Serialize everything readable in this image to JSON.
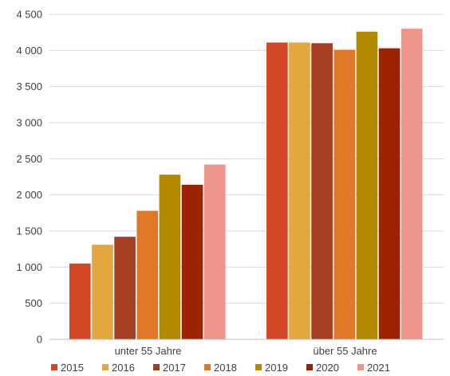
{
  "chart_data": {
    "type": "bar",
    "categories": [
      "unter 55 Jahre",
      "über 55 Jahre"
    ],
    "series": [
      {
        "name": "2015",
        "color": "#d24726",
        "values": [
          1050,
          4110
        ]
      },
      {
        "name": "2016",
        "color": "#e2a73f",
        "values": [
          1310,
          4110
        ]
      },
      {
        "name": "2017",
        "color": "#a33e22",
        "values": [
          1420,
          4100
        ]
      },
      {
        "name": "2018",
        "color": "#e07828",
        "values": [
          1780,
          4010
        ]
      },
      {
        "name": "2019",
        "color": "#b38b00",
        "values": [
          2280,
          4260
        ]
      },
      {
        "name": "2020",
        "color": "#9c2200",
        "values": [
          2140,
          4030
        ]
      },
      {
        "name": "2021",
        "color": "#ee958a",
        "values": [
          2420,
          4300
        ]
      }
    ],
    "ylim": [
      0,
      4500
    ],
    "yticks": [
      0,
      500,
      1000,
      1500,
      2000,
      2500,
      3000,
      3500,
      4000,
      4500
    ],
    "ytick_labels": [
      "0",
      "500",
      "1 000",
      "1 500",
      "2 000",
      "2 500",
      "3 000",
      "3 500",
      "4 000",
      "4 500"
    ],
    "grid": true,
    "legend_position": "bottom",
    "title": "",
    "xlabel": "",
    "ylabel": ""
  }
}
